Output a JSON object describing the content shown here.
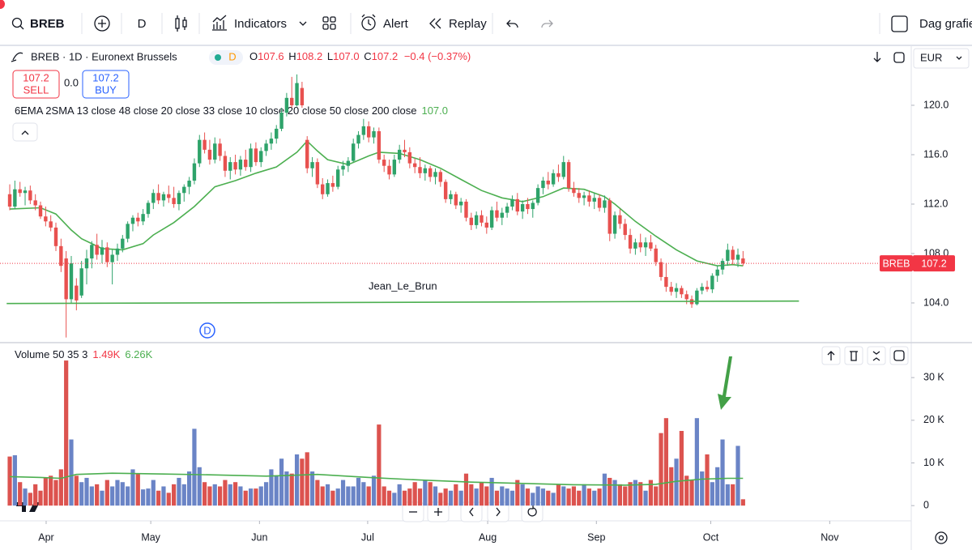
{
  "toolbar": {
    "symbol": "BREB",
    "interval": "D",
    "indicators": "Indicators",
    "alert": "Alert",
    "replay": "Replay",
    "layout": "Dag grafie"
  },
  "legend": {
    "title": "BREB · 1D · Euronext Brussels",
    "badge": "D",
    "ohlc": [
      {
        "key": "O",
        "value": "107.6"
      },
      {
        "key": "H",
        "value": "108.2"
      },
      {
        "key": "L",
        "value": "107.0"
      },
      {
        "key": "C",
        "value": "107.2"
      }
    ],
    "change": "−0.4 (−0.37%)"
  },
  "trade": {
    "sell_price": "107.2",
    "sell": "SELL",
    "spread": "0.0",
    "buy_price": "107.2",
    "buy": "BUY"
  },
  "indicator": {
    "name": "6EMA 2SMA 13 close 48 close 20 close 33 close 10 close 20 close 50 close 200 close",
    "value": "107.0"
  },
  "volume_legend": {
    "name": "Volume 50 35 3",
    "value": "1.49K",
    "ma": "6.26K"
  },
  "currency": "EUR",
  "price_tag": {
    "symbol": "BREB",
    "price": "107.2"
  },
  "marker": "D",
  "chart_data": [
    {
      "type": "candlestick",
      "up_color": "#2ea36a",
      "down_color": "#e8514f",
      "xlim": [
        -1.9,
        175.8
      ],
      "xticks": [
        {
          "value": 7.1,
          "label": "Apr"
        },
        {
          "value": 27.5,
          "label": "May"
        },
        {
          "value": 48.7,
          "label": "Jun"
        },
        {
          "value": 69.8,
          "label": "Jul"
        },
        {
          "value": 93.2,
          "label": "Aug"
        },
        {
          "value": 114.4,
          "label": "Sep"
        },
        {
          "value": 136.7,
          "label": "Oct"
        },
        {
          "value": 159.9,
          "label": "Nov"
        }
      ],
      "ylim": [
        100.85,
        124.72
      ],
      "yticks": [
        {
          "value": 104,
          "label": "104.0"
        },
        {
          "value": 108,
          "label": "108.0"
        },
        {
          "value": 112,
          "label": "112.0"
        },
        {
          "value": 116,
          "label": "116.0"
        },
        {
          "value": 120,
          "label": "120.0"
        }
      ],
      "candles": [
        [
          112.8,
          113.6,
          111.5,
          111.8
        ],
        [
          111.8,
          113.9,
          111.6,
          113.2
        ],
        [
          113.2,
          113.8,
          112.6,
          112.9
        ],
        [
          112.9,
          113.4,
          111.9,
          113.1
        ],
        [
          113.1,
          113.5,
          112.0,
          112.3
        ],
        [
          112.3,
          112.8,
          111.5,
          111.9
        ],
        [
          111.9,
          112.2,
          110.8,
          111.0
        ],
        [
          111.0,
          111.8,
          110.2,
          110.6
        ],
        [
          110.6,
          111.1,
          109.8,
          110.1
        ],
        [
          110.1,
          110.5,
          108.2,
          108.6
        ],
        [
          108.6,
          109.2,
          106.5,
          107.0
        ],
        [
          107.6,
          108.2,
          101.2,
          104.3
        ],
        [
          104.3,
          107.8,
          104.0,
          107.2
        ],
        [
          105.4,
          106.0,
          103.4,
          104.2
        ],
        [
          104.6,
          107.4,
          104.4,
          106.8
        ],
        [
          106.8,
          108.3,
          105.5,
          107.6
        ],
        [
          107.6,
          109.0,
          106.8,
          108.7
        ],
        [
          108.7,
          109.6,
          107.5,
          107.9
        ],
        [
          107.9,
          109.1,
          107.2,
          108.5
        ],
        [
          108.5,
          108.9,
          106.9,
          107.3
        ],
        [
          107.3,
          108.3,
          105.5,
          107.9
        ],
        [
          107.9,
          108.8,
          107.4,
          108.4
        ],
        [
          108.4,
          109.5,
          108.1,
          109.2
        ],
        [
          109.2,
          110.6,
          108.9,
          110.4
        ],
        [
          110.4,
          111.1,
          109.8,
          110.9
        ],
        [
          110.9,
          111.3,
          110.2,
          110.6
        ],
        [
          110.6,
          111.6,
          110.3,
          111.2
        ],
        [
          111.2,
          112.3,
          110.9,
          112.1
        ],
        [
          112.1,
          113.2,
          111.6,
          112.9
        ],
        [
          112.9,
          113.6,
          112.0,
          112.3
        ],
        [
          112.3,
          113.0,
          111.8,
          112.8
        ],
        [
          112.8,
          113.5,
          112.1,
          112.5
        ],
        [
          112.5,
          113.4,
          111.7,
          112.0
        ],
        [
          112.0,
          113.1,
          111.5,
          112.9
        ],
        [
          112.9,
          113.6,
          112.2,
          113.4
        ],
        [
          113.4,
          114.2,
          112.8,
          113.9
        ],
        [
          113.9,
          115.7,
          113.6,
          115.3
        ],
        [
          115.3,
          117.6,
          115.0,
          117.2
        ],
        [
          117.2,
          117.8,
          116.1,
          116.4
        ],
        [
          116.4,
          117.2,
          115.2,
          115.6
        ],
        [
          115.6,
          117.4,
          115.3,
          116.9
        ],
        [
          116.9,
          117.3,
          115.5,
          115.9
        ],
        [
          115.9,
          116.3,
          114.2,
          114.7
        ],
        [
          114.7,
          115.8,
          114.0,
          115.4
        ],
        [
          115.4,
          116.0,
          114.4,
          114.8
        ],
        [
          114.8,
          115.9,
          114.3,
          115.6
        ],
        [
          115.6,
          116.4,
          114.7,
          115.0
        ],
        [
          115.0,
          116.9,
          114.6,
          116.5
        ],
        [
          116.5,
          117.0,
          115.1,
          115.4
        ],
        [
          115.4,
          116.6,
          115.0,
          116.3
        ],
        [
          116.3,
          117.2,
          115.9,
          116.9
        ],
        [
          116.9,
          117.8,
          116.4,
          117.3
        ],
        [
          117.3,
          118.4,
          116.9,
          118.1
        ],
        [
          118.1,
          119.8,
          117.9,
          119.4
        ],
        [
          119.4,
          121.0,
          119.1,
          120.6
        ],
        [
          120.6,
          122.3,
          119.8,
          120.0
        ],
        [
          120.0,
          122.5,
          119.9,
          121.8
        ],
        [
          121.4,
          121.9,
          119.8,
          120.0
        ],
        [
          117.2,
          117.5,
          114.5,
          114.9
        ],
        [
          114.9,
          115.8,
          114.2,
          115.4
        ],
        [
          115.4,
          115.7,
          113.3,
          113.6
        ],
        [
          113.6,
          114.1,
          112.4,
          112.8
        ],
        [
          112.8,
          114.0,
          112.6,
          113.7
        ],
        [
          113.7,
          114.3,
          113.0,
          113.4
        ],
        [
          113.4,
          115.1,
          113.2,
          114.8
        ],
        [
          114.8,
          115.5,
          114.3,
          115.1
        ],
        [
          115.1,
          115.8,
          114.6,
          115.5
        ],
        [
          115.5,
          117.3,
          115.4,
          116.9
        ],
        [
          116.9,
          117.9,
          116.5,
          117.6
        ],
        [
          117.6,
          118.9,
          117.2,
          118.3
        ],
        [
          118.3,
          118.7,
          117.0,
          117.4
        ],
        [
          117.4,
          118.2,
          116.9,
          117.9
        ],
        [
          117.9,
          118.2,
          115.3,
          115.6
        ],
        [
          115.6,
          116.0,
          114.6,
          115.1
        ],
        [
          115.1,
          115.6,
          114.0,
          114.4
        ],
        [
          114.4,
          116.0,
          114.2,
          115.6
        ],
        [
          115.6,
          116.8,
          115.3,
          116.4
        ],
        [
          116.4,
          117.2,
          115.8,
          116.2
        ],
        [
          116.2,
          116.6,
          114.9,
          115.3
        ],
        [
          115.3,
          115.7,
          114.5,
          115.0
        ],
        [
          115.0,
          115.8,
          114.1,
          114.5
        ],
        [
          114.5,
          115.2,
          113.9,
          114.9
        ],
        [
          114.9,
          115.1,
          113.8,
          114.2
        ],
        [
          114.2,
          114.9,
          113.6,
          114.6
        ],
        [
          114.6,
          114.8,
          113.4,
          113.8
        ],
        [
          113.8,
          114.0,
          112.1,
          112.4
        ],
        [
          112.4,
          113.1,
          112.0,
          112.8
        ],
        [
          112.8,
          113.0,
          111.6,
          111.9
        ],
        [
          111.9,
          112.5,
          111.3,
          112.2
        ],
        [
          112.2,
          112.4,
          110.6,
          110.9
        ],
        [
          110.9,
          111.3,
          109.9,
          110.3
        ],
        [
          110.3,
          111.4,
          110.0,
          111.1
        ],
        [
          111.1,
          111.5,
          110.2,
          110.5
        ],
        [
          110.5,
          111.0,
          109.6,
          110.1
        ],
        [
          110.1,
          111.8,
          109.9,
          111.5
        ],
        [
          111.5,
          112.2,
          110.6,
          110.9
        ],
        [
          110.9,
          111.7,
          110.3,
          111.3
        ],
        [
          111.3,
          112.1,
          110.9,
          111.8
        ],
        [
          111.8,
          112.7,
          111.5,
          112.4
        ],
        [
          112.4,
          112.9,
          111.1,
          111.4
        ],
        [
          111.4,
          112.3,
          110.8,
          112.0
        ],
        [
          112.0,
          112.5,
          111.2,
          111.6
        ],
        [
          111.6,
          112.3,
          110.9,
          112.1
        ],
        [
          112.1,
          113.6,
          111.9,
          113.3
        ],
        [
          113.3,
          114.2,
          112.8,
          113.9
        ],
        [
          113.9,
          114.6,
          113.2,
          113.6
        ],
        [
          113.6,
          114.8,
          113.4,
          114.5
        ],
        [
          114.5,
          115.2,
          113.8,
          114.2
        ],
        [
          114.2,
          115.9,
          114.0,
          115.4
        ],
        [
          115.4,
          115.6,
          113.0,
          113.3
        ],
        [
          113.3,
          113.8,
          112.6,
          112.9
        ],
        [
          112.9,
          113.3,
          112.1,
          112.5
        ],
        [
          112.5,
          113.0,
          111.9,
          112.7
        ],
        [
          112.7,
          113.1,
          111.8,
          112.2
        ],
        [
          112.2,
          112.9,
          111.6,
          112.5
        ],
        [
          112.5,
          112.8,
          111.4,
          111.7
        ],
        [
          111.7,
          112.7,
          111.3,
          112.3
        ],
        [
          112.3,
          112.5,
          109.0,
          109.6
        ],
        [
          109.6,
          111.4,
          109.2,
          111.1
        ],
        [
          111.1,
          111.6,
          110.0,
          110.4
        ],
        [
          110.4,
          110.8,
          109.1,
          109.5
        ],
        [
          109.5,
          110.0,
          108.0,
          108.4
        ],
        [
          108.4,
          109.2,
          107.9,
          108.9
        ],
        [
          108.9,
          109.6,
          108.1,
          108.5
        ],
        [
          108.5,
          109.3,
          107.8,
          108.9
        ],
        [
          108.9,
          109.5,
          108.2,
          108.4
        ],
        [
          108.4,
          108.7,
          107.0,
          107.3
        ],
        [
          107.3,
          107.6,
          105.8,
          106.1
        ],
        [
          106.1,
          107.2,
          104.9,
          105.3
        ],
        [
          105.3,
          105.7,
          104.6,
          104.9
        ],
        [
          104.9,
          105.6,
          104.4,
          105.2
        ],
        [
          105.2,
          105.4,
          104.4,
          104.7
        ],
        [
          104.7,
          105.0,
          103.9,
          104.3
        ],
        [
          104.3,
          104.6,
          103.6,
          103.9
        ],
        [
          103.9,
          105.2,
          103.8,
          105.0
        ],
        [
          105.0,
          105.6,
          104.7,
          105.3
        ],
        [
          105.3,
          105.8,
          104.9,
          105.1
        ],
        [
          105.1,
          106.4,
          104.8,
          106.2
        ],
        [
          106.2,
          107.0,
          105.7,
          106.7
        ],
        [
          106.7,
          107.6,
          106.3,
          107.4
        ],
        [
          107.4,
          108.8,
          107.0,
          108.3
        ],
        [
          108.3,
          108.6,
          107.1,
          107.5
        ],
        [
          107.5,
          108.4,
          106.9,
          107.9
        ],
        [
          107.6,
          108.2,
          107.0,
          107.2
        ]
      ],
      "ema": {
        "color": "#4caf50",
        "x": [
          0,
          6,
          9,
          12,
          14,
          18,
          22,
          26,
          28,
          32,
          36,
          40,
          44,
          48,
          52,
          56,
          58,
          60,
          62,
          66,
          70,
          72,
          76,
          80,
          84,
          88,
          92,
          96,
          100,
          104,
          108,
          112,
          116,
          118,
          122,
          126,
          130,
          134,
          138,
          141,
          143
        ],
        "values": [
          111.6,
          111.7,
          111.2,
          109.9,
          109.2,
          108.4,
          108.3,
          108.8,
          109.5,
          110.5,
          111.8,
          113.4,
          113.9,
          114.5,
          115.0,
          116.2,
          117.1,
          116.3,
          115.6,
          115.2,
          115.9,
          116.2,
          116.1,
          115.6,
          114.9,
          114.0,
          113.1,
          112.5,
          112.2,
          112.6,
          113.3,
          113.2,
          112.6,
          112.0,
          110.6,
          109.4,
          108.3,
          107.4,
          107.0,
          107.1,
          107.0
        ]
      },
      "trendline": {
        "label": "Jean_Le_Brun",
        "color": "#4caf50",
        "x": [
          -0.6,
          153.9
        ],
        "values": [
          103.95,
          104.15
        ]
      }
    },
    {
      "type": "bar",
      "up_color": "#6a84c6",
      "down_color": "#dc534f",
      "ylim": [
        -3000,
        38000
      ],
      "yticks": [
        0,
        {
          "value": 10000,
          "label": "10 K"
        },
        {
          "value": 20000,
          "label": "20 K"
        },
        {
          "value": 30000,
          "label": "30 K"
        }
      ],
      "values": [
        11500,
        11800,
        5500,
        4000,
        3000,
        5000,
        3500,
        6500,
        7000,
        6000,
        8500,
        34000,
        15500,
        7000,
        5500,
        6500,
        4500,
        5000,
        3500,
        6000,
        4500,
        6000,
        5500,
        4500,
        8500,
        7500,
        3800,
        4000,
        6000,
        3500,
        4500,
        3000,
        5000,
        6500,
        5000,
        8000,
        18000,
        9000,
        5500,
        4500,
        5000,
        4500,
        6000,
        5000,
        5500,
        4500,
        3500,
        4000,
        4000,
        4500,
        5500,
        8500,
        7000,
        11000,
        8000,
        7500,
        12000,
        11000,
        12500,
        8000,
        6000,
        4500,
        5000,
        3500,
        4000,
        6000,
        4500,
        4500,
        6500,
        5500,
        4500,
        7000,
        19000,
        4500,
        3500,
        3000,
        5000,
        3500,
        4000,
        5500,
        4000,
        6000,
        5500,
        4500,
        3000,
        4000,
        3500,
        5000,
        3500,
        7500,
        5000,
        4000,
        5500,
        4500,
        6500,
        3500,
        4500,
        4000,
        3500,
        6000,
        5000,
        4000,
        3000,
        4500,
        4000,
        3500,
        3000,
        5000,
        4500,
        4000,
        4500,
        3500,
        5000,
        4000,
        3500,
        4000,
        7500,
        6500,
        6000,
        5000,
        4500,
        5500,
        6000,
        5500,
        3500,
        6000,
        4500,
        17000,
        20500,
        9000,
        11000,
        17500,
        7000,
        6000,
        20500,
        8000,
        12000,
        5500,
        9000,
        15500,
        5000,
        5000,
        14000,
        1490
      ],
      "ma": {
        "color": "#4caf50",
        "x": [
          0,
          6,
          10,
          13,
          20,
          30,
          40,
          50,
          60,
          70,
          80,
          90,
          100,
          110,
          120,
          126,
          130,
          135,
          140,
          143
        ],
        "values": [
          6800,
          6600,
          6400,
          7300,
          7600,
          7400,
          7200,
          6900,
          7300,
          6600,
          6000,
          5500,
          5200,
          4900,
          4800,
          5000,
          5700,
          6200,
          6400,
          6400
        ]
      }
    }
  ]
}
